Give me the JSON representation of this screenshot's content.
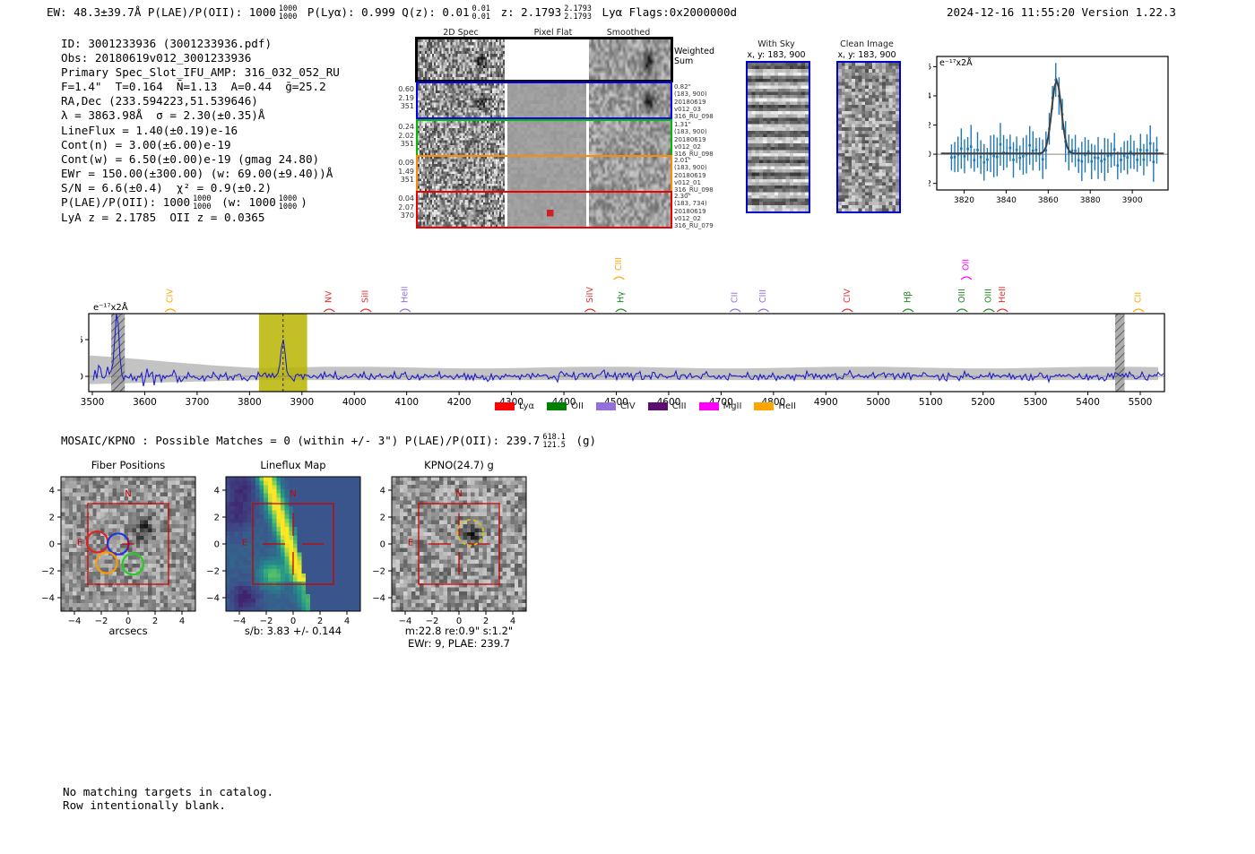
{
  "header": {
    "ew": "EW: 48.3±39.7Å",
    "plae": "P(LAE)/P(OII): 1000",
    "plae_hi": "1000",
    "plae_lo": "1000",
    "plya": "P(Lyα): 0.999",
    "qz": "Q(z): 0.01",
    "qz_hi": "0.01",
    "qz_lo": "0.01",
    "z": "z: 2.1793",
    "z_hi": "2.1793",
    "z_lo": "2.1793",
    "classification": "Lyα",
    "flags": "Flags:0x2000000d",
    "timestamp": "2024-12-16 11:55:20",
    "version": "Version 1.22.3"
  },
  "info": {
    "lines": [
      "ID: 3001233936 (3001233936.pdf)",
      "Obs: 20180619v012_3001233936",
      "Primary Spec_Slot_IFU_AMP: 316_032_052_RU",
      "F=1.4\"  T=0.164  N̄=1.13  A=0.44  ḡ=25.2",
      "RA,Dec (233.594223,51.539646)",
      "λ = 3863.98Å  σ = 2.30(±0.35)Å",
      "LineFlux = 1.40(±0.19)e-16",
      "Cont(n) = 3.00(±6.00)e-19",
      "Cont(w) = 6.50(±0.00)e-19 (gmag 24.80)",
      "EWr = 150.00(±300.00) (w: 69.00(±9.40))Å",
      "S/N = 6.6(±0.4)  χ² = 0.9(±0.2)"
    ],
    "plae_line": {
      "pre": "P(LAE)/P(OII): 1000",
      "hi": "1000",
      "lo": "1000",
      "mid": "(w: 1000",
      "hi2": "1000",
      "lo2": "1000",
      "post": ")"
    },
    "last_line": "LyA z = 2.1785  OII z = 0.0365"
  },
  "spec2d": {
    "col_headers": [
      "2D Spec",
      "Pixel Flat",
      "Smoothed"
    ],
    "rows": [
      {
        "border": "#000000",
        "left": [],
        "right": [
          "Weighted",
          "Sum"
        ],
        "weighted": true
      },
      {
        "border": "#0000ee",
        "left": [
          "0.60",
          "2.19",
          "351"
        ],
        "right": [
          "0.82\"",
          "(183, 900)",
          "20180619",
          "v012_03",
          "316_RU_098"
        ]
      },
      {
        "border": "#00bb00",
        "left": [
          "0.24",
          "2.02",
          "351"
        ],
        "right": [
          "1.31\"",
          "(183, 900)",
          "20180619",
          "v012_02",
          "316_RU_098"
        ]
      },
      {
        "border": "#ff8c00",
        "left": [
          "0.09",
          "1.49",
          "351"
        ],
        "right": [
          "2.01\"",
          "(183, 900)",
          "20180619",
          "v012_01",
          "316_RU_098"
        ]
      },
      {
        "border": "#ee0000",
        "left": [
          "0.04",
          "2.07",
          "370"
        ],
        "right": [
          "2.30\"",
          "(183, 734)",
          "20180619",
          "v012_02",
          "316_RU_079"
        ]
      }
    ]
  },
  "cutout_strips": {
    "with_sky": {
      "title": "With Sky",
      "coords": "x, y: 183, 900"
    },
    "clean": {
      "title": "Clean Image",
      "coords": "x, y: 183, 900"
    }
  },
  "mosaic_line": {
    "pre": "MOSAIC/KPNO : Possible Matches = 0 (within +/- 3\")  P(LAE)/P(OII): 239.7",
    "hi": "618.1",
    "lo": "121.5",
    "post": "(g)"
  },
  "footer_lines": [
    "No matching targets in catalog.",
    "Row intentionally blank."
  ],
  "chart_data": [
    {
      "id": "zoom_spectrum",
      "type": "scatter",
      "units_label": "e⁻¹⁷x2Å",
      "x_ticks": [
        3820,
        3840,
        3860,
        3880,
        3900
      ],
      "y_ticks": [
        -2,
        0,
        2,
        4,
        6
      ],
      "x_range": [
        3807,
        3917
      ],
      "y_range": [
        -2.45,
        6.7
      ],
      "fit": {
        "type": "gaussian",
        "center": 3863.98,
        "sigma": 2.3,
        "amplitude": 5.0,
        "color": "#404040"
      },
      "points_color": "#1f77b4",
      "note": "blue errorbar spectrum points with gaussian emission-line fit at 3863.98 Å peaking near 5"
    },
    {
      "id": "full_spectrum",
      "type": "line",
      "units_label": "e⁻¹⁷x2Å",
      "x_range": [
        3500,
        5546
      ],
      "x_ticks": [
        3500,
        3600,
        3700,
        3800,
        3900,
        4000,
        4100,
        4200,
        4300,
        4400,
        4500,
        4600,
        4700,
        4800,
        4900,
        5000,
        5100,
        5200,
        5300,
        5400,
        5500
      ],
      "y_ticks": [
        0,
        5
      ],
      "y_range": [
        -2.07,
        8.54
      ],
      "line_color": "#1414cf",
      "error_band_color": "#b8b8b8",
      "selected_band": {
        "x0": 3818,
        "x1": 3910,
        "color": "#b8b400",
        "dashed_line_at": 3863.98
      },
      "masked_bands": [
        [
          3536,
          3562
        ],
        [
          5452,
          5470
        ]
      ],
      "emission_peak": {
        "x": 3863.98,
        "y": 5.5
      },
      "line_markers": [
        {
          "label": "CIV",
          "color": "#ffa500",
          "wave": 3649,
          "raised": false
        },
        {
          "label": "NV",
          "color": "#e03131",
          "wave": 3952,
          "raised": false
        },
        {
          "label": "SiII",
          "color": "#e03131",
          "wave": 4022,
          "raised": false
        },
        {
          "label": "HeII",
          "color": "#9370db",
          "wave": 4097,
          "raised": false
        },
        {
          "label": "SiIV",
          "color": "#e03131",
          "wave": 4450,
          "raised": false
        },
        {
          "label": "CIII",
          "color": "#ffa500",
          "wave": 4505,
          "raised": true
        },
        {
          "label": "Hγ",
          "color": "#228b22",
          "wave": 4509,
          "raised": false
        },
        {
          "label": "CII",
          "color": "#9370db",
          "wave": 4727,
          "raised": false
        },
        {
          "label": "CIII",
          "color": "#9370db",
          "wave": 4781,
          "raised": false
        },
        {
          "label": "CIV",
          "color": "#e03131",
          "wave": 4941,
          "raised": false
        },
        {
          "label": "Hβ",
          "color": "#228b22",
          "wave": 5057,
          "raised": false
        },
        {
          "label": "OIII",
          "color": "#228b22",
          "wave": 5160,
          "raised": false
        },
        {
          "label": "OII",
          "color": "#ff00ff",
          "wave": 5168,
          "raised": true
        },
        {
          "label": "OIII",
          "color": "#228b22",
          "wave": 5211,
          "raised": false
        },
        {
          "label": "HeII",
          "color": "#e03131",
          "wave": 5237,
          "raised": false
        },
        {
          "label": "CII",
          "color": "#ffa500",
          "wave": 5497,
          "raised": false
        }
      ],
      "legend": [
        {
          "label": "Lyα",
          "color": "#ff0000"
        },
        {
          "label": "OII",
          "color": "#008000"
        },
        {
          "label": "CIV",
          "color": "#9370db"
        },
        {
          "label": "CIII",
          "color": "#5c0e6e"
        },
        {
          "label": "MgII",
          "color": "#ff00ff"
        },
        {
          "label": "HeII",
          "color": "#ffa500"
        }
      ]
    },
    {
      "id": "fiber_positions",
      "type": "image-cutout",
      "title": "Fiber Positions",
      "xlabel": "arcsecs",
      "ticks": [
        -4,
        -2,
        0,
        2,
        4
      ],
      "extent": [
        -5,
        5
      ],
      "box_arcsec": 3,
      "compass": {
        "north": "N",
        "east": "E"
      },
      "fibers": [
        {
          "color": "#dd2222",
          "x": -2.3,
          "y": 0.15,
          "r": 0.78
        },
        {
          "color": "#2233dd",
          "x": -0.75,
          "y": 0.0,
          "r": 0.78
        },
        {
          "color": "#ff9900",
          "x": -1.6,
          "y": -1.4,
          "r": 0.78
        },
        {
          "color": "#22cc22",
          "x": 0.35,
          "y": -1.5,
          "r": 0.78
        }
      ]
    },
    {
      "id": "lineflux_map",
      "type": "heatmap",
      "title": "Lineflux Map",
      "xlabel": "s/b: 3.83 +/- 0.144",
      "ticks": [
        -4,
        -2,
        0,
        2,
        4
      ],
      "extent": [
        -5,
        5
      ],
      "colormap": "viridis",
      "compass": {
        "north": "N",
        "east": "E"
      }
    },
    {
      "id": "kpno_cutout",
      "type": "image-cutout",
      "title": "KPNO(24.7) g",
      "xlabel_line1": "m:22.8  re:0.9\"  s:1.2\"",
      "xlabel_line2": "EWr: 9, PLAE: 239.7",
      "ticks": [
        -4,
        -2,
        0,
        2,
        4
      ],
      "extent": [
        -5,
        5
      ],
      "compass": {
        "north": "N",
        "east": "E"
      },
      "aperture": {
        "x": 0.85,
        "y": 0.85,
        "r": 0.95,
        "color": "#d4c400"
      }
    }
  ]
}
